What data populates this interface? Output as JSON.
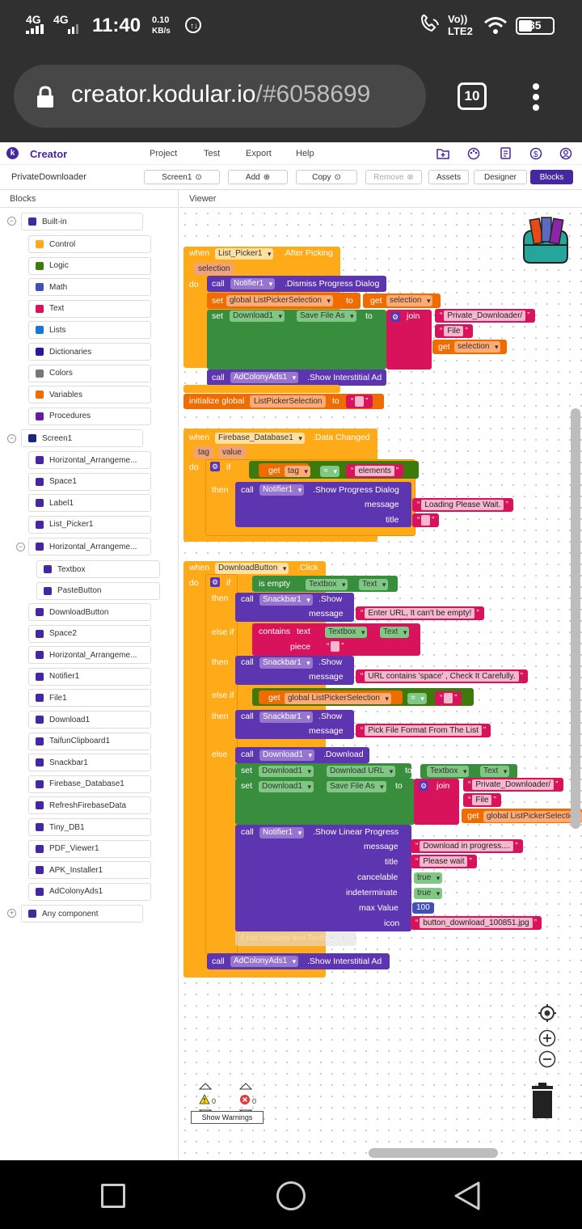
{
  "status": {
    "net1": "4G",
    "net2": "4G",
    "time": "11:40",
    "speed_value": "0.10",
    "speed_unit": "KB/s",
    "volte_top": "Vo))",
    "volte_bottom": "LTE2",
    "battery": "35"
  },
  "browser": {
    "url_host": "creator.kodular.io",
    "url_path": "/#6058699",
    "tab_count": "10"
  },
  "app": {
    "brand": "Creator",
    "menu": [
      "Project",
      "Test",
      "Export",
      "Help"
    ]
  },
  "project": {
    "name": "PrivateDownloader",
    "screen": "Screen1",
    "add": "Add",
    "copy": "Copy",
    "remove": "Remove",
    "assets": "Assets",
    "designer": "Designer",
    "blocks": "Blocks"
  },
  "panels": {
    "blocks": "Blocks",
    "viewer": "Viewer"
  },
  "tree": {
    "builtin": "Built-in",
    "builtin_items": [
      {
        "label": "Control",
        "color": "#ffab19"
      },
      {
        "label": "Logic",
        "color": "#3b7a0b"
      },
      {
        "label": "Math",
        "color": "#3f51b5"
      },
      {
        "label": "Text",
        "color": "#d8125b"
      },
      {
        "label": "Lists",
        "color": "#1976d2"
      },
      {
        "label": "Dictionaries",
        "color": "#2d1799"
      },
      {
        "label": "Colors",
        "color": "#777777"
      },
      {
        "label": "Variables",
        "color": "#ef6c00"
      },
      {
        "label": "Procedures",
        "color": "#6a1b9a"
      }
    ],
    "screen": "Screen1",
    "screen_items": [
      "Horizontal_Arrangeme...",
      "Space1",
      "Label1",
      "List_Picker1"
    ],
    "ha2": "Horizontal_Arrangeme...",
    "ha2_items": [
      "Textbox",
      "PasteButton"
    ],
    "screen_items2": [
      "DownloadButton",
      "Space2",
      "Horizontal_Arrangeme...",
      "Notifier1",
      "File1",
      "Download1",
      "TaifunClipboard1",
      "Snackbar1",
      "Firebase_Database1",
      "RefreshFirebaseData",
      "Tiny_DB1",
      "PDF_Viewer1",
      "APK_Installer1",
      "AdColonyAds1"
    ],
    "any": "Any component"
  },
  "warnings": {
    "warn_count": "0",
    "error_count": "0",
    "show": "Show Warnings"
  },
  "b1": {
    "when": "when",
    "comp": "List_Picker1",
    "event": ".After Picking",
    "param": "selection",
    "do": "do",
    "call": "call",
    "notifier": "Notifier1",
    "dismiss": ".Dismiss Progress Dialog",
    "set": "set",
    "gvar": "global ListPickerSelection",
    "to": "to",
    "get": "get",
    "selection": "selection",
    "download": "Download1",
    "saveas": "Save File As",
    "join": "join",
    "s1": "Private_Downloader/",
    "s2": "File",
    "ad": "AdColonyAds1",
    "show_inter": ".Show Interstitial Ad"
  },
  "init": {
    "label": "initialize global",
    "name": "ListPickerSelection",
    "to": "to"
  },
  "b2": {
    "comp": "Firebase_Database1",
    "event": ".Data Changed",
    "p1": "tag",
    "p2": "value",
    "if": "if",
    "get": "get",
    "tag": "tag",
    "eq": "=",
    "elements": "elements",
    "then": "then",
    "notifier": "Notifier1",
    "method": ".Show Progress Dialog",
    "message": "message",
    "msg": "Loading Please Wait.",
    "title": "title"
  },
  "b3": {
    "comp": "DownloadButton",
    "event": ".Click",
    "isempty": "is empty",
    "textbox": "Textbox",
    "text": "Text",
    "snackbar": "Snackbar1",
    "show": ".Show",
    "msg1": "Enter URL, It can't be empty!",
    "elseif": "else if",
    "contains": "contains",
    "contains_mode": "text",
    "piece": "piece",
    "msg2": "URL contains 'space' , Check It Carefully.",
    "gvar": "global ListPickerSelection",
    "msg3": "Pick File Format From The List",
    "else": "else",
    "download": "Download1",
    "dl_method": ".Download",
    "dlurl": "Download URL",
    "saveas": "Save File As",
    "s1": "Private_Downloader/",
    "s2": "File",
    "notifier": "Notifier1",
    "linear": ".Show Linear Progress",
    "msg4": "Download in progress....",
    "title_v": "Please wait",
    "cancelable": "cancelable",
    "indeterminate": "indeterminate",
    "maxvalue": "max Value",
    "icon": "icon",
    "true": "true",
    "max": "100",
    "icon_v": "button_download_100851.jpg",
    "comment": "if not contains  text Textb...",
    "ad": "AdColonyAds1",
    "show_inter": ".Show Interstitial Ad"
  }
}
